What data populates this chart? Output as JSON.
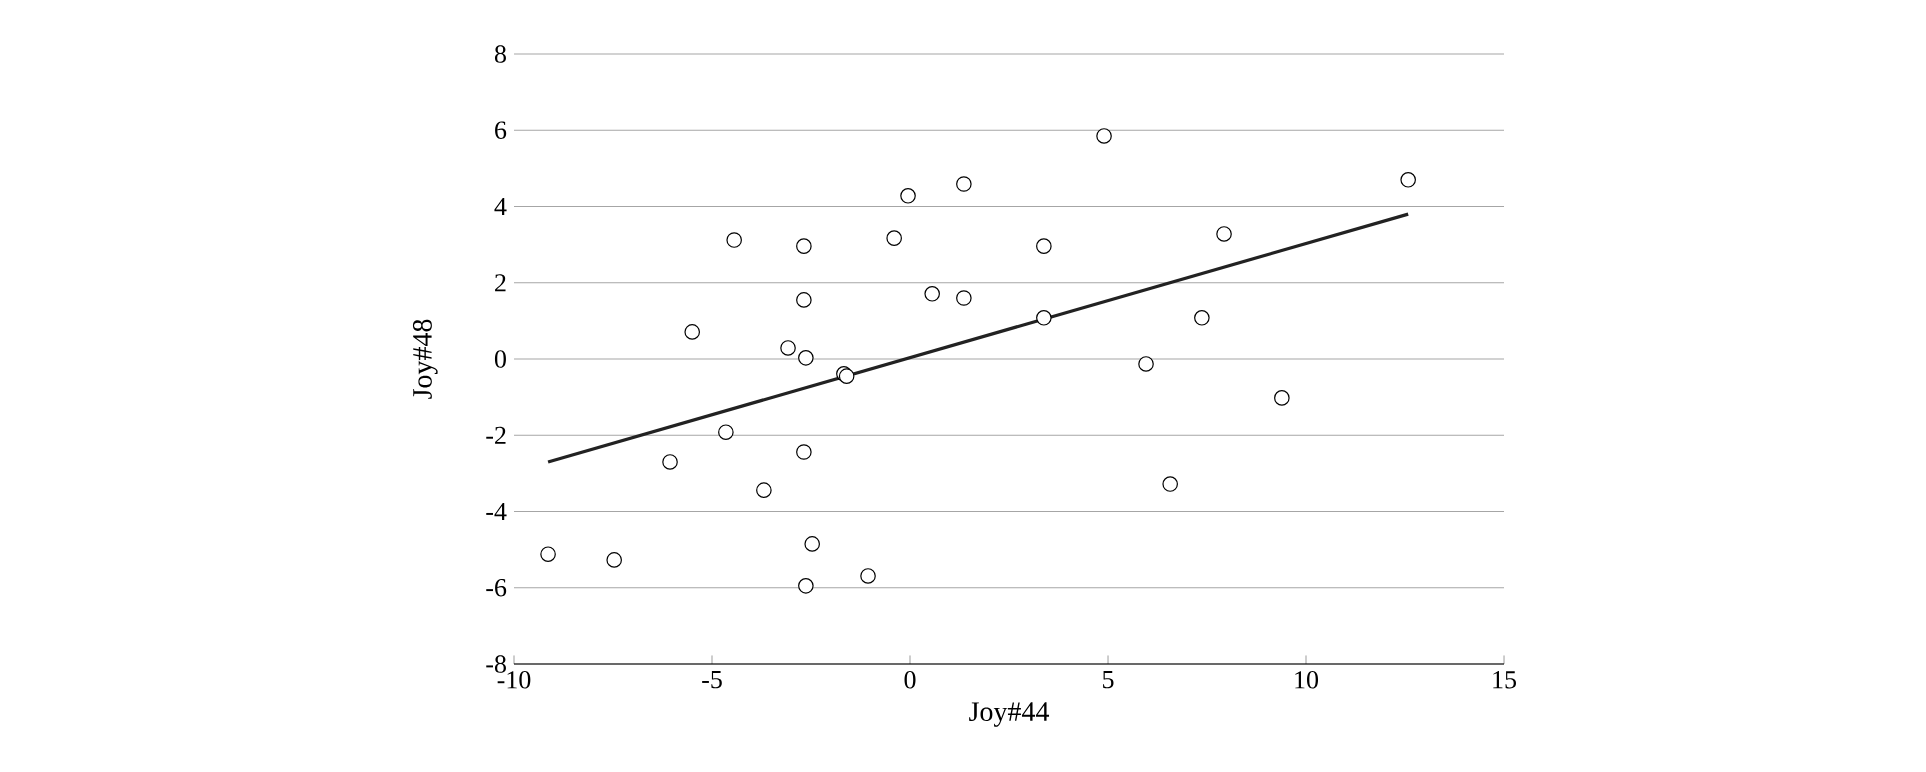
{
  "chart_data": {
    "type": "scatter",
    "xlabel": "Joy#44",
    "ylabel": "Joy#48",
    "xlim": [
      -10,
      15
    ],
    "xticks": [
      -10,
      -5,
      0,
      5,
      10,
      15
    ],
    "ylim": [
      -8,
      8
    ],
    "yticks": [
      -8,
      -6,
      -4,
      -2,
      0,
      2,
      4,
      6,
      8
    ],
    "grid": "y",
    "series": [
      {
        "color": "#000000",
        "marker": "circle",
        "x": [
          -9.14,
          -7.47,
          -6.06,
          -5.5,
          -4.65,
          -4.44,
          -3.69,
          -3.08,
          -2.68,
          -2.68,
          -2.63,
          -2.68,
          -2.47,
          -2.63,
          -1.67,
          -1.6,
          -1.06,
          -0.4,
          -0.05,
          0.56,
          1.36,
          1.36,
          3.38,
          3.38,
          4.9,
          5.96,
          6.57,
          7.37,
          7.93,
          9.39,
          12.58
        ],
        "values": [
          -5.12,
          -5.27,
          -2.7,
          0.71,
          -1.92,
          3.12,
          -3.44,
          0.29,
          2.96,
          1.55,
          0.03,
          -2.44,
          -4.85,
          -5.95,
          -0.39,
          -0.45,
          -5.69,
          3.17,
          4.28,
          1.71,
          4.59,
          1.6,
          2.96,
          1.08,
          5.85,
          -0.13,
          -3.28,
          1.08,
          3.28,
          -1.02,
          4.7
        ]
      },
      {
        "type": "line",
        "marker": "none",
        "color": "#222222",
        "x": [
          -9.14,
          12.58
        ],
        "values": [
          -2.7,
          3.8
        ]
      }
    ]
  }
}
